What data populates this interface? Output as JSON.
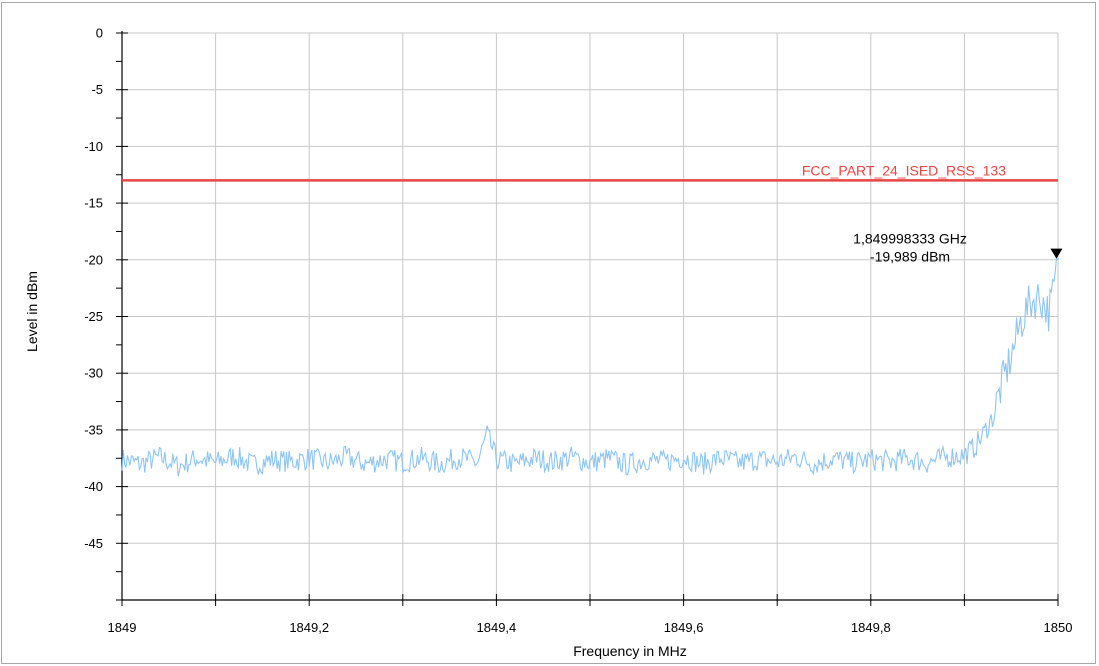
{
  "chart_data": {
    "type": "line",
    "xlabel": "Frequency in MHz",
    "ylabel": "Level in dBm",
    "xlim": [
      1849,
      1850
    ],
    "ylim": [
      -50,
      0
    ],
    "x_ticks": [
      "1849",
      "1849,2",
      "1849,4",
      "1849,6",
      "1849,8",
      "1850"
    ],
    "x_tick_values": [
      1849,
      1849.2,
      1849.4,
      1849.6,
      1849.8,
      1850
    ],
    "y_ticks": [
      "0",
      "-5",
      "-10",
      "-15",
      "-20",
      "-25",
      "-30",
      "-35",
      "-40",
      "-45"
    ],
    "y_tick_values": [
      0,
      -5,
      -10,
      -15,
      -20,
      -25,
      -30,
      -35,
      -40,
      -45
    ],
    "grid": true,
    "limit_line": {
      "label": "FCC_PART_24_ISED_RSS_133",
      "y": -13,
      "color": "#e84646"
    },
    "series": [
      {
        "color": "#8ec5f2",
        "points": [
          [
            1849.0,
            -37.6
          ],
          [
            1849.02,
            -38.0
          ],
          [
            1849.04,
            -37.4
          ],
          [
            1849.06,
            -38.2
          ],
          [
            1849.08,
            -37.5
          ],
          [
            1849.1,
            -37.9
          ],
          [
            1849.12,
            -37.3
          ],
          [
            1849.14,
            -38.1
          ],
          [
            1849.16,
            -37.6
          ],
          [
            1849.18,
            -37.8
          ],
          [
            1849.2,
            -37.5
          ],
          [
            1849.22,
            -37.9
          ],
          [
            1849.24,
            -37.4
          ],
          [
            1849.26,
            -38.0
          ],
          [
            1849.28,
            -37.6
          ],
          [
            1849.3,
            -37.8
          ],
          [
            1849.32,
            -37.5
          ],
          [
            1849.34,
            -38.0
          ],
          [
            1849.36,
            -37.4
          ],
          [
            1849.38,
            -37.9
          ],
          [
            1849.39,
            -35.4
          ],
          [
            1849.4,
            -37.6
          ],
          [
            1849.42,
            -38.0
          ],
          [
            1849.44,
            -37.5
          ],
          [
            1849.46,
            -37.8
          ],
          [
            1849.48,
            -37.4
          ],
          [
            1849.5,
            -37.9
          ],
          [
            1849.52,
            -37.5
          ],
          [
            1849.54,
            -38.1
          ],
          [
            1849.56,
            -37.6
          ],
          [
            1849.58,
            -37.8
          ],
          [
            1849.6,
            -37.4
          ],
          [
            1849.62,
            -38.0
          ],
          [
            1849.64,
            -37.5
          ],
          [
            1849.66,
            -37.9
          ],
          [
            1849.68,
            -37.6
          ],
          [
            1849.7,
            -37.8
          ],
          [
            1849.72,
            -37.4
          ],
          [
            1849.74,
            -38.0
          ],
          [
            1849.76,
            -37.5
          ],
          [
            1849.78,
            -37.9
          ],
          [
            1849.8,
            -37.6
          ],
          [
            1849.82,
            -37.8
          ],
          [
            1849.84,
            -37.5
          ],
          [
            1849.86,
            -37.9
          ],
          [
            1849.88,
            -37.4
          ],
          [
            1849.9,
            -37.2
          ],
          [
            1849.91,
            -36.6
          ],
          [
            1849.92,
            -35.4
          ],
          [
            1849.93,
            -33.9
          ],
          [
            1849.94,
            -31.0
          ],
          [
            1849.95,
            -28.5
          ],
          [
            1849.96,
            -25.6
          ],
          [
            1849.97,
            -23.8
          ],
          [
            1849.98,
            -23.2
          ],
          [
            1849.99,
            -24.6
          ],
          [
            1849.995,
            -22.9
          ],
          [
            1850.0,
            -19.989
          ]
        ]
      }
    ],
    "marker": {
      "x": 1849.998333,
      "y": -19.989,
      "label_freq": "1,849998333 GHz",
      "label_level": "-19,989 dBm"
    }
  }
}
